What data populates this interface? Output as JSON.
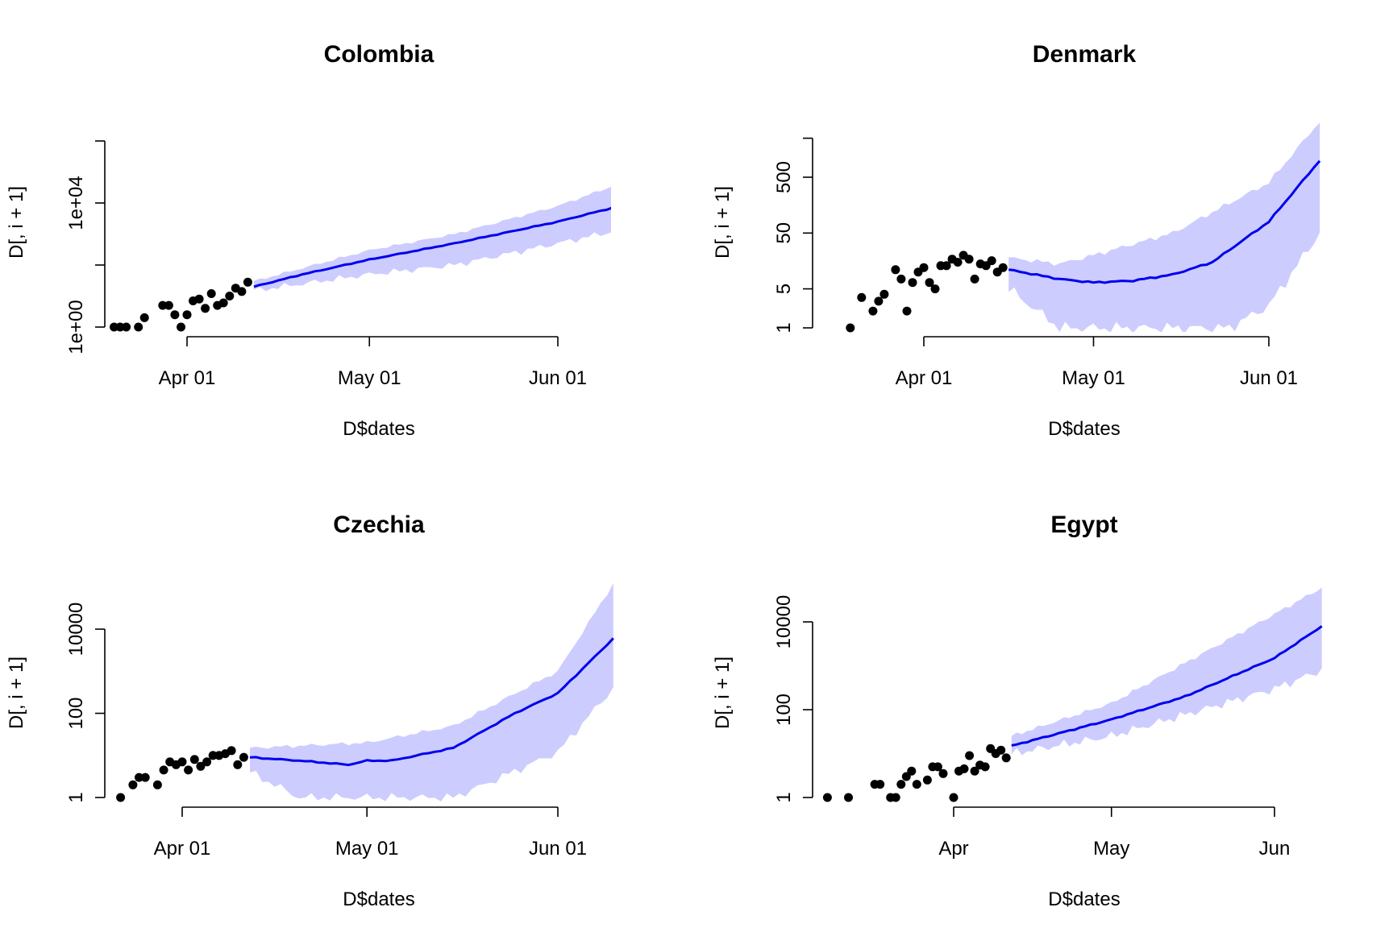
{
  "chart_data": [
    {
      "type": "scatter",
      "title": "Colombia",
      "xlabel": "D$dates",
      "ylabel": "D[, i + 1]",
      "yscale": "log",
      "x_ticks": [
        {
          "date": "2020-04-01",
          "label": "Apr 01"
        },
        {
          "date": "2020-05-01",
          "label": "May 01"
        },
        {
          "date": "2020-06-01",
          "label": "Jun 01"
        }
      ],
      "y_ticks": [
        {
          "value": 1,
          "label": "1e+00"
        },
        {
          "value": 100,
          "label": ""
        },
        {
          "value": 10000,
          "label": "1e+04"
        },
        {
          "value": 1000000,
          "label": ""
        }
      ],
      "series": [
        {
          "kind": "points",
          "color": "#000000",
          "data": [
            [
              "2020-03-20",
              1
            ],
            [
              "2020-03-21",
              1
            ],
            [
              "2020-03-22",
              1
            ],
            [
              "2020-03-24",
              1
            ],
            [
              "2020-03-25",
              2
            ],
            [
              "2020-03-28",
              5
            ],
            [
              "2020-03-29",
              5
            ],
            [
              "2020-03-30",
              2.5
            ],
            [
              "2020-03-31",
              1
            ],
            [
              "2020-04-01",
              2.5
            ],
            [
              "2020-04-02",
              7
            ],
            [
              "2020-04-03",
              8
            ],
            [
              "2020-04-04",
              4
            ],
            [
              "2020-04-05",
              12
            ],
            [
              "2020-04-06",
              5
            ],
            [
              "2020-04-07",
              6
            ],
            [
              "2020-04-08",
              10
            ],
            [
              "2020-04-09",
              18
            ],
            [
              "2020-04-10",
              14
            ],
            [
              "2020-04-11",
              28
            ]
          ]
        },
        {
          "kind": "line",
          "color": "#0000ee",
          "data": [
            [
              "2020-04-12",
              20
            ],
            [
              "2020-04-20",
              50
            ],
            [
              "2020-05-01",
              150
            ],
            [
              "2020-05-15",
              500
            ],
            [
              "2020-06-01",
              2500
            ],
            [
              "2020-06-10",
              7000
            ]
          ]
        },
        {
          "kind": "band",
          "color": "#ccccff",
          "lower": [
            [
              "2020-04-12",
              15
            ],
            [
              "2020-05-01",
              50
            ],
            [
              "2020-05-15",
              100
            ],
            [
              "2020-06-01",
              500
            ],
            [
              "2020-06-10",
              1200
            ]
          ],
          "upper": [
            [
              "2020-04-12",
              30
            ],
            [
              "2020-04-20",
              80
            ],
            [
              "2020-05-01",
              300
            ],
            [
              "2020-05-15",
              1000
            ],
            [
              "2020-06-01",
              8000
            ],
            [
              "2020-06-10",
              35000
            ]
          ]
        }
      ]
    },
    {
      "type": "scatter",
      "title": "Denmark",
      "xlabel": "D$dates",
      "ylabel": "D[, i + 1]",
      "yscale": "log",
      "x_ticks": [
        {
          "date": "2020-04-01",
          "label": "Apr 01"
        },
        {
          "date": "2020-05-01",
          "label": "May 01"
        },
        {
          "date": "2020-06-01",
          "label": "Jun 01"
        }
      ],
      "y_ticks": [
        {
          "value": 1,
          "label": "1"
        },
        {
          "value": 5,
          "label": "5"
        },
        {
          "value": 50,
          "label": "50"
        },
        {
          "value": 500,
          "label": "500"
        },
        {
          "value": 2500,
          "label": ""
        }
      ],
      "series": [
        {
          "kind": "points",
          "color": "#000000",
          "data": [
            [
              "2020-03-19",
              1
            ],
            [
              "2020-03-21",
              3.5
            ],
            [
              "2020-03-23",
              2
            ],
            [
              "2020-03-24",
              3
            ],
            [
              "2020-03-25",
              4
            ],
            [
              "2020-03-27",
              11
            ],
            [
              "2020-03-28",
              7.5
            ],
            [
              "2020-03-29",
              2
            ],
            [
              "2020-03-30",
              6.5
            ],
            [
              "2020-03-31",
              10
            ],
            [
              "2020-04-01",
              12
            ],
            [
              "2020-04-02",
              6.5
            ],
            [
              "2020-04-03",
              5
            ],
            [
              "2020-04-04",
              13
            ],
            [
              "2020-04-05",
              13
            ],
            [
              "2020-04-06",
              17
            ],
            [
              "2020-04-07",
              15
            ],
            [
              "2020-04-08",
              20
            ],
            [
              "2020-04-09",
              17
            ],
            [
              "2020-04-10",
              7.5
            ],
            [
              "2020-04-11",
              14
            ],
            [
              "2020-04-12",
              13
            ],
            [
              "2020-04-13",
              16
            ],
            [
              "2020-04-14",
              10
            ],
            [
              "2020-04-15",
              12
            ]
          ]
        },
        {
          "kind": "line",
          "color": "#0000ee",
          "data": [
            [
              "2020-04-16",
              11
            ],
            [
              "2020-04-25",
              7.5
            ],
            [
              "2020-05-01",
              6.5
            ],
            [
              "2020-05-08",
              7
            ],
            [
              "2020-05-15",
              9
            ],
            [
              "2020-05-22",
              15
            ],
            [
              "2020-06-01",
              80
            ],
            [
              "2020-06-10",
              1000
            ]
          ]
        },
        {
          "kind": "band",
          "color": "#ccccff",
          "lower": [
            [
              "2020-04-16",
              5
            ],
            [
              "2020-04-25",
              1
            ],
            [
              "2020-05-01",
              1
            ],
            [
              "2020-05-15",
              1
            ],
            [
              "2020-05-25",
              1
            ],
            [
              "2020-06-01",
              2.5
            ],
            [
              "2020-06-10",
              50
            ]
          ],
          "upper": [
            [
              "2020-04-16",
              18
            ],
            [
              "2020-04-25",
              14
            ],
            [
              "2020-05-01",
              20
            ],
            [
              "2020-05-15",
              50
            ],
            [
              "2020-06-01",
              400
            ],
            [
              "2020-06-10",
              5000
            ]
          ]
        }
      ]
    },
    {
      "type": "scatter",
      "title": "Czechia",
      "xlabel": "D$dates",
      "ylabel": "D[, i + 1]",
      "yscale": "log",
      "x_ticks": [
        {
          "date": "2020-04-01",
          "label": "Apr 01"
        },
        {
          "date": "2020-05-01",
          "label": "May 01"
        },
        {
          "date": "2020-06-01",
          "label": "Jun 01"
        }
      ],
      "y_ticks": [
        {
          "value": 1,
          "label": "1"
        },
        {
          "value": 100,
          "label": "100"
        },
        {
          "value": 10000,
          "label": "10000"
        }
      ],
      "series": [
        {
          "kind": "points",
          "color": "#000000",
          "data": [
            [
              "2020-03-22",
              1
            ],
            [
              "2020-03-24",
              2
            ],
            [
              "2020-03-25",
              3
            ],
            [
              "2020-03-26",
              3
            ],
            [
              "2020-03-28",
              2
            ],
            [
              "2020-03-29",
              4.5
            ],
            [
              "2020-03-30",
              7
            ],
            [
              "2020-03-31",
              6
            ],
            [
              "2020-04-01",
              7
            ],
            [
              "2020-04-02",
              4.5
            ],
            [
              "2020-04-03",
              8
            ],
            [
              "2020-04-04",
              5.5
            ],
            [
              "2020-04-05",
              7
            ],
            [
              "2020-04-06",
              10
            ],
            [
              "2020-04-07",
              10
            ],
            [
              "2020-04-08",
              11
            ],
            [
              "2020-04-09",
              13
            ],
            [
              "2020-04-10",
              6
            ],
            [
              "2020-04-11",
              9
            ]
          ]
        },
        {
          "kind": "line",
          "color": "#0000ee",
          "data": [
            [
              "2020-04-12",
              9
            ],
            [
              "2020-04-20",
              7.5
            ],
            [
              "2020-04-28",
              6
            ],
            [
              "2020-05-01",
              7.5
            ],
            [
              "2020-05-05",
              7.5
            ],
            [
              "2020-05-15",
              15
            ],
            [
              "2020-05-25",
              100
            ],
            [
              "2020-06-01",
              300
            ],
            [
              "2020-06-10",
              6000
            ]
          ]
        },
        {
          "kind": "band",
          "color": "#ccccff",
          "lower": [
            [
              "2020-04-12",
              4
            ],
            [
              "2020-04-20",
              1
            ],
            [
              "2020-05-01",
              1
            ],
            [
              "2020-05-15",
              1
            ],
            [
              "2020-05-20",
              2
            ],
            [
              "2020-06-01",
              12
            ],
            [
              "2020-06-10",
              400
            ]
          ],
          "upper": [
            [
              "2020-04-12",
              15
            ],
            [
              "2020-05-01",
              20
            ],
            [
              "2020-05-15",
              50
            ],
            [
              "2020-06-01",
              1000
            ],
            [
              "2020-06-10",
              120000
            ]
          ]
        }
      ]
    },
    {
      "type": "scatter",
      "title": "Egypt",
      "xlabel": "D$dates",
      "ylabel": "D[, i + 1]",
      "yscale": "log",
      "x_ticks": [
        {
          "date": "2020-04-01",
          "label": "Apr"
        },
        {
          "date": "2020-05-01",
          "label": "May"
        },
        {
          "date": "2020-06-01",
          "label": "Jun"
        }
      ],
      "y_ticks": [
        {
          "value": 1,
          "label": "1"
        },
        {
          "value": 100,
          "label": "100"
        },
        {
          "value": 10000,
          "label": "10000"
        }
      ],
      "series": [
        {
          "kind": "points",
          "color": "#000000",
          "data": [
            [
              "2020-03-08",
              1
            ],
            [
              "2020-03-12",
              1
            ],
            [
              "2020-03-17",
              2
            ],
            [
              "2020-03-18",
              2
            ],
            [
              "2020-03-20",
              1
            ],
            [
              "2020-03-21",
              1
            ],
            [
              "2020-03-22",
              2
            ],
            [
              "2020-03-23",
              3
            ],
            [
              "2020-03-24",
              4
            ],
            [
              "2020-03-25",
              2
            ],
            [
              "2020-03-27",
              2.5
            ],
            [
              "2020-03-28",
              5
            ],
            [
              "2020-03-29",
              5
            ],
            [
              "2020-03-30",
              3.5
            ],
            [
              "2020-04-01",
              1
            ],
            [
              "2020-04-02",
              4
            ],
            [
              "2020-04-03",
              4.5
            ],
            [
              "2020-04-04",
              9
            ],
            [
              "2020-04-05",
              4
            ],
            [
              "2020-04-06",
              5.5
            ],
            [
              "2020-04-07",
              5
            ],
            [
              "2020-04-08",
              13
            ],
            [
              "2020-04-09",
              10
            ],
            [
              "2020-04-10",
              12
            ],
            [
              "2020-04-11",
              8
            ]
          ]
        },
        {
          "kind": "line",
          "color": "#0000ee",
          "data": [
            [
              "2020-04-12",
              15
            ],
            [
              "2020-05-01",
              60
            ],
            [
              "2020-05-15",
              200
            ],
            [
              "2020-06-01",
              1500
            ],
            [
              "2020-06-10",
              8000
            ]
          ]
        },
        {
          "kind": "band",
          "color": "#ccccff",
          "lower": [
            [
              "2020-04-12",
              10
            ],
            [
              "2020-05-01",
              25
            ],
            [
              "2020-06-01",
              300
            ],
            [
              "2020-06-10",
              800
            ]
          ],
          "upper": [
            [
              "2020-04-12",
              25
            ],
            [
              "2020-05-01",
              140
            ],
            [
              "2020-06-01",
              15000
            ],
            [
              "2020-06-10",
              60000
            ]
          ]
        }
      ]
    }
  ]
}
